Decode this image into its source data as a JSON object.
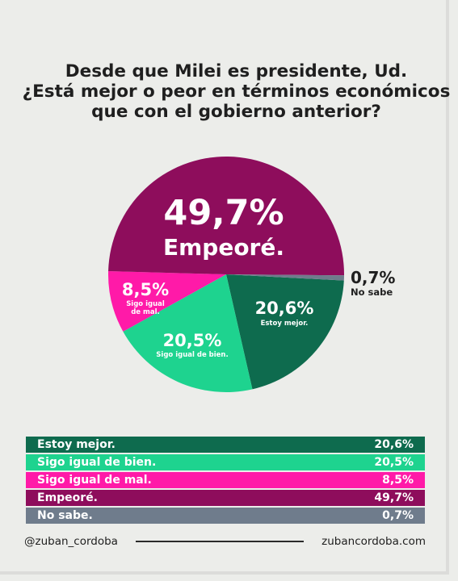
{
  "title_lines": [
    "Desde que Milei es presidente, Ud.",
    "¿Está mejor o peor en términos económicos",
    "que con el gobierno anterior?"
  ],
  "chart_data": {
    "type": "pie",
    "slices": [
      {
        "label": "Estoy mejor.",
        "value": 20.6,
        "display": "20,6%",
        "color": "#0e6b4e"
      },
      {
        "label": "Sigo igual de bien.",
        "value": 20.5,
        "display": "20,5%",
        "color": "#1ed38f"
      },
      {
        "label": "Sigo igual de mal.",
        "value": 8.5,
        "display": "8,5%",
        "color": "#ff1aa8"
      },
      {
        "label": "Empeoré.",
        "value": 49.7,
        "display": "49,7%",
        "color": "#8e0d5c"
      },
      {
        "label": "No sabe.",
        "value": 0.7,
        "display": "0,7%",
        "color": "#6f7c8c"
      }
    ],
    "pie_labels": {
      "empeore_value": "49,7%",
      "empeore_label": "Empeoré.",
      "mejor_value": "20,6%",
      "mejor_label": "Estoy mejor.",
      "bien_value": "20,5%",
      "bien_label": "Sigo igual de bien.",
      "mal_value": "8,5%",
      "mal_label_1": "Sigo igual",
      "mal_label_2": "de mal.",
      "nosabe_value": "0,7%",
      "nosabe_label": "No sabe"
    }
  },
  "legend": [
    {
      "label": "Estoy mejor.",
      "value": "20,6%",
      "color": "#0e6b4e"
    },
    {
      "label": "Sigo igual de bien.",
      "value": "20,5%",
      "color": "#1ed38f"
    },
    {
      "label": "Sigo igual de mal.",
      "value": "8,5%",
      "color": "#ff1aa8"
    },
    {
      "label": "Empeoré.",
      "value": "49,7%",
      "color": "#8e0d5c"
    },
    {
      "label": "No sabe.",
      "value": "0,7%",
      "color": "#6f7c8c"
    }
  ],
  "footer": {
    "handle": "@zuban_cordoba",
    "website": "zubancordoba.com"
  }
}
